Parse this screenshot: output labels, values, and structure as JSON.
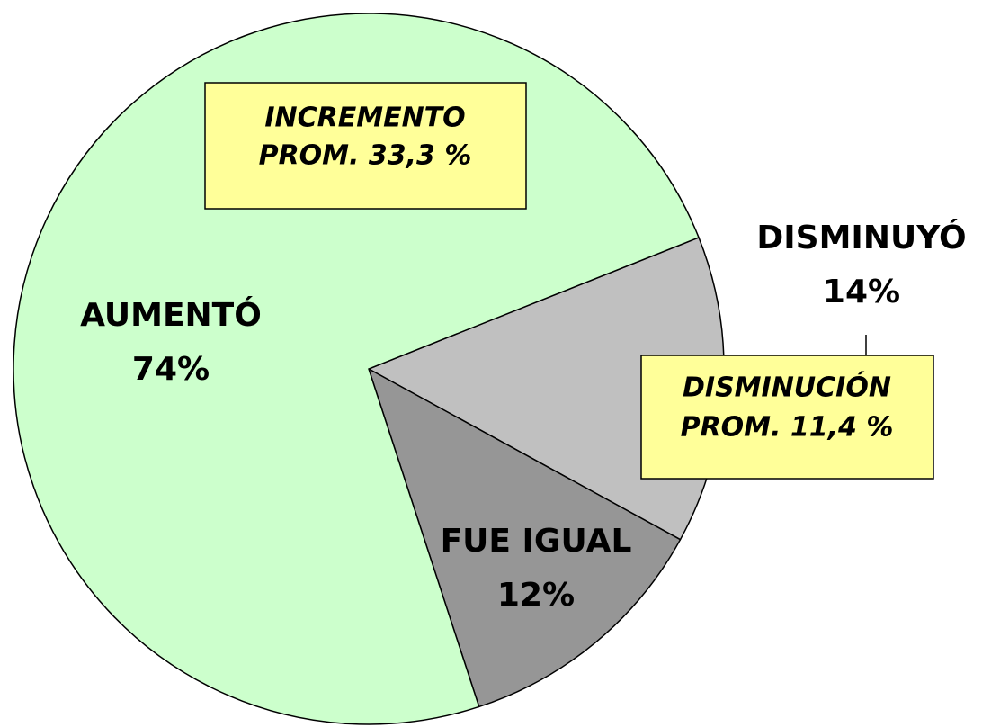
{
  "chart_data": {
    "type": "pie",
    "categories": [
      "DISMINUYÓ",
      "FUE IGUAL",
      "AUMENTÓ"
    ],
    "values": [
      14,
      12,
      74
    ],
    "value_labels": [
      "14%",
      "12%",
      "74%"
    ],
    "colors": [
      "#c0c0c0",
      "#969696",
      "#ccffcc"
    ],
    "annotations": [
      {
        "lines": [
          "INCREMENTO",
          "PROM. 33,3 %"
        ]
      },
      {
        "lines": [
          "DISMINUCIÓN",
          "PROM. 11,4 %"
        ]
      }
    ]
  }
}
